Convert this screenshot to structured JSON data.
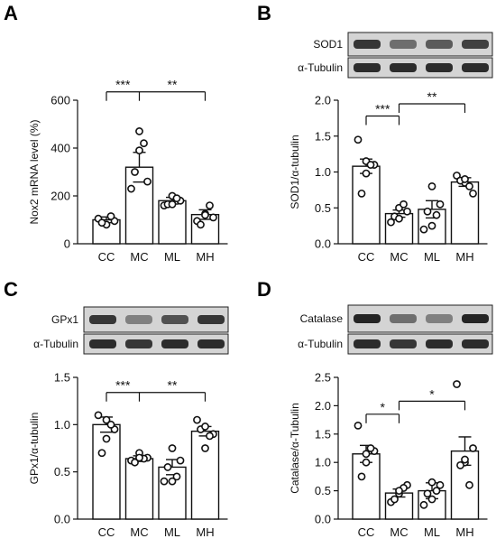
{
  "panels": [
    {
      "letter": "A",
      "blots": [],
      "chart_data": {
        "type": "bar",
        "title": "",
        "xlabel": "",
        "ylabel": "Nox2 mRNA level (%)",
        "categories": [
          "CC",
          "MC",
          "ML",
          "MH"
        ],
        "values": [
          100,
          320,
          180,
          122
        ],
        "errors": [
          12,
          62,
          14,
          20
        ],
        "points": [
          [
            105,
            95,
            80,
            88,
            115
          ],
          [
            230,
            260,
            470,
            300,
            420,
            390
          ],
          [
            160,
            180,
            200,
            165,
            190,
            165
          ],
          [
            95,
            110,
            125,
            80,
            160,
            120
          ]
        ],
        "ylim": [
          0,
          600
        ],
        "yticks": [
          "0",
          "200",
          "400",
          "600"
        ],
        "yticks_values": [
          0,
          200,
          400,
          600
        ],
        "significance": [
          {
            "label": "***",
            "from": 0,
            "to": 1,
            "level": 635,
            "drop_to": [
              0,
              1
            ]
          },
          {
            "label": "**",
            "from": 1,
            "to": 3,
            "level": 635,
            "drop_to": [
              3
            ]
          }
        ]
      }
    },
    {
      "letter": "B",
      "blots": [
        "SOD1",
        "α-Tubulin"
      ],
      "chart_data": {
        "type": "bar",
        "title": "",
        "xlabel": "",
        "ylabel": "SOD1/α-tubulin",
        "categories": [
          "CC",
          "MC",
          "ML",
          "MH"
        ],
        "values": [
          1.08,
          0.42,
          0.48,
          0.86
        ],
        "errors": [
          0.1,
          0.05,
          0.12,
          0.06
        ],
        "points": [
          [
            1.45,
            1.1,
            1.15,
            0.7,
            1.1,
            0.98
          ],
          [
            0.3,
            0.45,
            0.5,
            0.38,
            0.55,
            0.35
          ],
          [
            0.2,
            0.55,
            0.8,
            0.45,
            0.4,
            0.25
          ],
          [
            0.95,
            0.7,
            0.85,
            0.88,
            0.8,
            0.9
          ]
        ],
        "ylim": [
          0,
          2.0
        ],
        "yticks": [
          "0.0",
          "0.5",
          "1.0",
          "1.5",
          "2.0"
        ],
        "yticks_values": [
          0,
          0.5,
          1.0,
          1.5,
          2.0
        ],
        "significance": [
          {
            "label": "***",
            "from": 0,
            "to": 1,
            "level": 1.78,
            "drop_to": [
              0,
              1
            ]
          },
          {
            "label": "**",
            "from": 1,
            "to": 3,
            "level": 1.95,
            "drop_to": [
              1,
              3
            ]
          }
        ]
      }
    },
    {
      "letter": "C",
      "blots": [
        "GPx1",
        "α-Tubulin"
      ],
      "chart_data": {
        "type": "bar",
        "title": "",
        "xlabel": "",
        "ylabel": "GPx1/α-tubulin",
        "categories": [
          "CC",
          "MC",
          "ML",
          "MH"
        ],
        "values": [
          1.0,
          0.64,
          0.55,
          0.93
        ],
        "errors": [
          0.08,
          0.03,
          0.08,
          0.05
        ],
        "points": [
          [
            1.1,
            0.95,
            1.05,
            0.7,
            1.0,
            0.85
          ],
          [
            0.62,
            0.65,
            0.7,
            0.6,
            0.64,
            0.65
          ],
          [
            0.4,
            0.62,
            0.75,
            0.55,
            0.45,
            0.4
          ],
          [
            1.05,
            0.9,
            0.75,
            0.95,
            0.88,
            0.98
          ]
        ],
        "ylim": [
          0,
          1.5
        ],
        "yticks": [
          "0.0",
          "0.5",
          "1.0",
          "1.5"
        ],
        "yticks_values": [
          0,
          0.5,
          1.0,
          1.5
        ],
        "significance": [
          {
            "label": "***",
            "from": 0,
            "to": 1,
            "level": 1.34,
            "drop_to": [
              0,
              1
            ]
          },
          {
            "label": "**",
            "from": 1,
            "to": 3,
            "level": 1.34,
            "drop_to": [
              3
            ]
          }
        ]
      }
    },
    {
      "letter": "D",
      "blots": [
        "Catalase",
        "α-Tubulin"
      ],
      "chart_data": {
        "type": "bar",
        "title": "",
        "xlabel": "",
        "ylabel": "Catalase/α-Tubulin",
        "categories": [
          "CC",
          "MC",
          "ML",
          "MH"
        ],
        "values": [
          1.15,
          0.46,
          0.5,
          1.2
        ],
        "errors": [
          0.15,
          0.07,
          0.14,
          0.25
        ],
        "points": [
          [
            1.65,
            1.2,
            1.15,
            0.75,
            1.25,
            1.0
          ],
          [
            0.3,
            0.6,
            0.45,
            0.35,
            0.55,
            0.5
          ],
          [
            0.25,
            0.6,
            0.65,
            0.45,
            0.5,
            0.35
          ],
          [
            2.38,
            1.25,
            1.0,
            0.95,
            0.6,
            1.05
          ]
        ],
        "ylim": [
          0,
          2.5
        ],
        "yticks": [
          "0.0",
          "0.5",
          "1.0",
          "1.5",
          "2.0",
          "2.5"
        ],
        "yticks_values": [
          0,
          0.5,
          1.0,
          1.5,
          2.0,
          2.5
        ],
        "significance": [
          {
            "label": "*",
            "from": 0,
            "to": 1,
            "level": 1.85,
            "drop_to": [
              0,
              1
            ]
          },
          {
            "label": "*",
            "from": 1,
            "to": 3,
            "level": 2.08,
            "drop_to": [
              1,
              3
            ]
          }
        ]
      }
    }
  ]
}
